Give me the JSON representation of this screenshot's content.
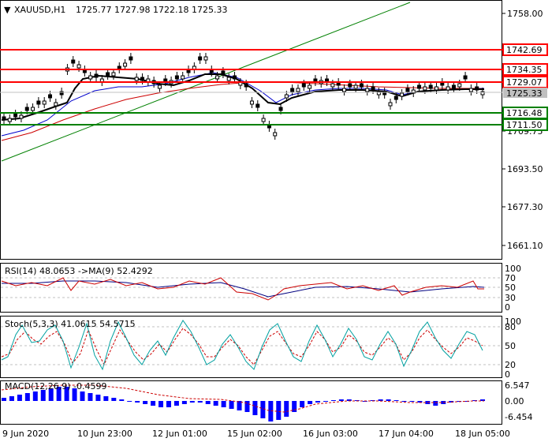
{
  "header": {
    "symbol": "XAUUSD,H1",
    "ohlc": "1725.77 1727.98 1722.18 1725.33"
  },
  "price_scale": {
    "ticks": [
      "1758.00",
      "1709.75",
      "1693.50",
      "1677.30",
      "1661.10"
    ]
  },
  "levels": [
    {
      "label": "1742.69",
      "kind": "resistance"
    },
    {
      "label": "1734.35",
      "kind": "resistance"
    },
    {
      "label": "1729.07",
      "kind": "resistance"
    },
    {
      "label": "1725.33",
      "kind": "current"
    },
    {
      "label": "1716.48",
      "kind": "support"
    },
    {
      "label": "1711.50",
      "kind": "support"
    }
  ],
  "rsi": {
    "label": "RSI(14) 48.0653  ->MA(9) 52.4292",
    "ticks": [
      "100",
      "70",
      "50",
      "30",
      "0"
    ]
  },
  "stoch": {
    "label": "Stoch(5,3,3) 41.0615 54.5715",
    "ticks": [
      "100",
      "80",
      "50",
      "20",
      "0"
    ]
  },
  "macd": {
    "label": "MACD(12,26,9) -0.4599",
    "ticks": [
      "6.547",
      "0.00",
      "-6.454"
    ]
  },
  "time_axis": [
    "9 Jun 2020",
    "10 Jun 23:00",
    "12 Jun 01:00",
    "15 Jun 02:00",
    "16 Jun 03:00",
    "17 Jun 04:00",
    "18 Jun 05:00"
  ],
  "colors": {
    "resistance": "#ff0000",
    "support": "#008000",
    "current": "#c0c0c0",
    "candle": "#000000",
    "ma_black": "#000000",
    "ma_blue": "#0000cc",
    "ma_red": "#cc0000",
    "trend": "#008000",
    "histogram": "#0000ff"
  }
}
